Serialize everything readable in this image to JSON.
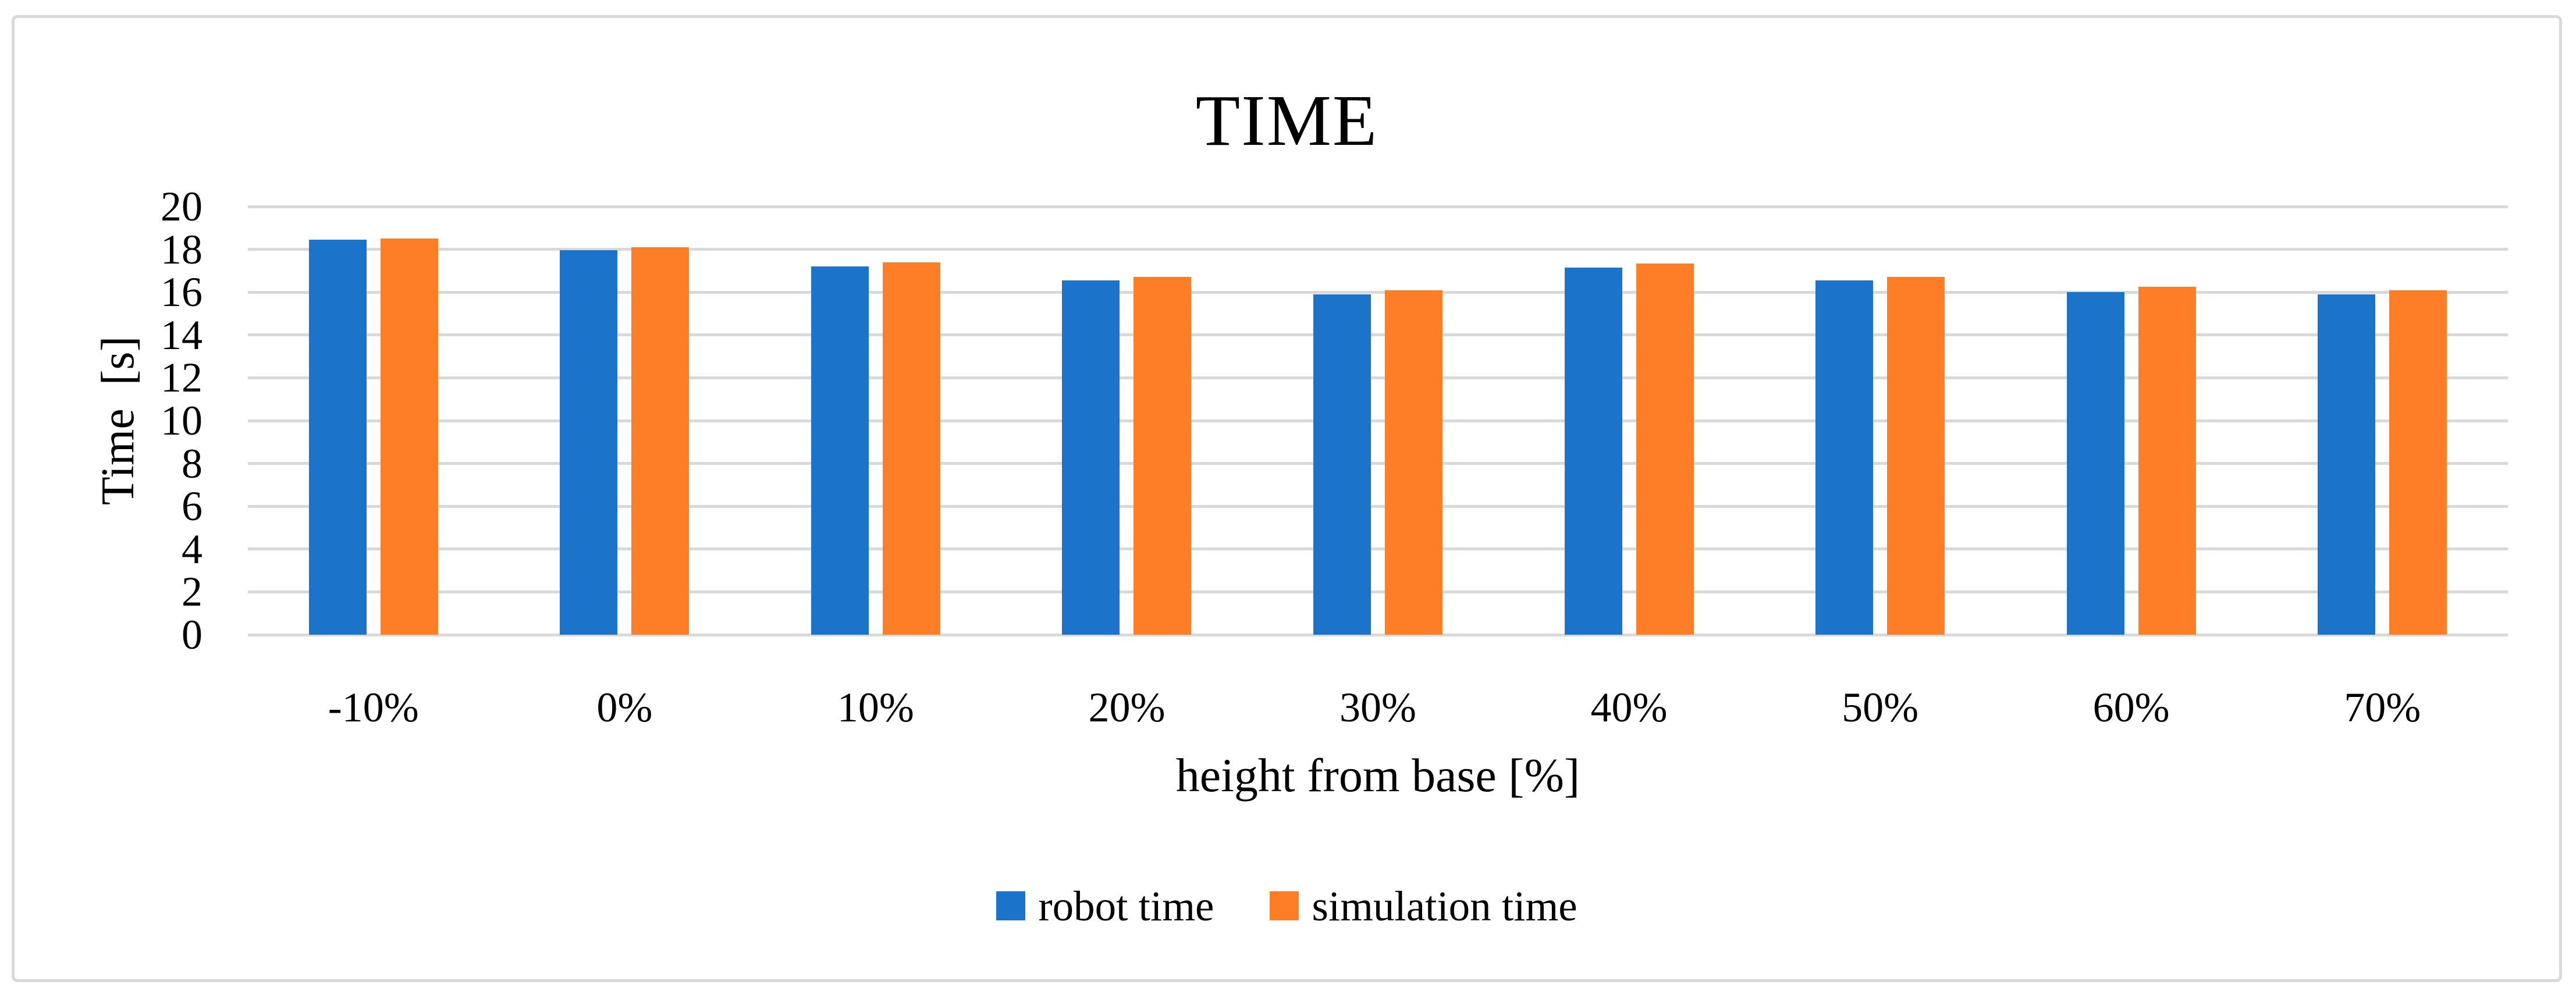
{
  "chart_data": {
    "type": "bar",
    "title": "TIME",
    "xlabel": "height from base [%]",
    "ylabel": "Time  [s]",
    "categories": [
      "-10%",
      "0%",
      "10%",
      "20%",
      "30%",
      "40%",
      "50%",
      "60%",
      "70%"
    ],
    "series": [
      {
        "name": "robot time",
        "color": "#1B74C9",
        "values": [
          18.45,
          17.95,
          17.2,
          16.55,
          15.9,
          17.15,
          16.55,
          16.0,
          15.9
        ]
      },
      {
        "name": "simulation time",
        "color": "#FD7E27",
        "values": [
          18.5,
          18.1,
          17.4,
          16.7,
          16.1,
          17.35,
          16.7,
          16.25,
          16.1
        ]
      }
    ],
    "ylim": [
      0,
      20
    ],
    "ytick_step": 2,
    "yticks": [
      0,
      2,
      4,
      6,
      8,
      10,
      12,
      14,
      16,
      18,
      20
    ],
    "grid": true,
    "gridline_color": "#D9D9D9",
    "frame_color": "#D9D9D9",
    "text_color": "#000000",
    "legend_position": "bottom",
    "legend": [
      "robot time",
      "simulation time"
    ]
  }
}
